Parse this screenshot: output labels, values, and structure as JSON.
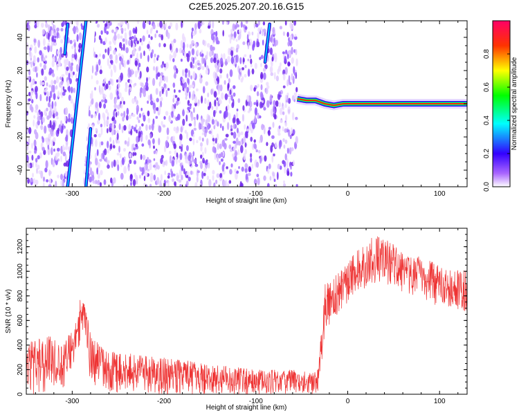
{
  "title": "C2E5.2025.207.20.16.G15",
  "colors": {
    "snr_line": "#ee3333",
    "colorbar_stops": [
      "#ffffff",
      "#9933ff",
      "#3300ff",
      "#00ffff",
      "#00ff00",
      "#ffff00",
      "#ff0000",
      "#ff0066"
    ],
    "axes": "#000000"
  },
  "chart_data": [
    {
      "type": "heatmap",
      "title": "C2E5.2025.207.20.16.G15",
      "xlabel": "Height of straight line (km)",
      "ylabel": "Frequency (Hz)",
      "xlim": [
        -350,
        130
      ],
      "ylim": [
        -50,
        50
      ],
      "x_ticks": [
        -300,
        -200,
        -100,
        0,
        100
      ],
      "y_ticks": [
        -40,
        -20,
        0,
        20,
        40
      ],
      "colorbar": {
        "label": "Normalized spectral amplitude",
        "range": [
          0,
          1
        ],
        "ticks": [
          0.0,
          0.2,
          0.4,
          0.6,
          0.8
        ]
      },
      "features": [
        {
          "name": "noise_floor",
          "x_range": [
            -350,
            -55
          ],
          "y_range": [
            -50,
            50
          ]
        },
        {
          "name": "diagonal_streak_main",
          "from": [
            -305,
            -50
          ],
          "to": [
            -285,
            50
          ]
        },
        {
          "name": "diagonal_streak_lower",
          "from": [
            -285,
            -50
          ],
          "to": [
            -280,
            -15
          ]
        },
        {
          "name": "diagonal_streak_upper_left",
          "from": [
            -308,
            30
          ],
          "to": [
            -305,
            48
          ]
        },
        {
          "name": "diagonal_streak_right",
          "from": [
            -90,
            25
          ],
          "to": [
            -85,
            48
          ]
        },
        {
          "name": "carrier_tone",
          "x": [
            -55,
            -45,
            -35,
            -25,
            -15,
            -5,
            0,
            130
          ],
          "y": [
            3,
            2,
            2,
            0,
            -1,
            0,
            0,
            0
          ]
        }
      ]
    },
    {
      "type": "line",
      "xlabel": "Height of straight line (km)",
      "ylabel": "SNR (10 * v/v)",
      "xlim": [
        -350,
        130
      ],
      "ylim": [
        0,
        1350
      ],
      "x_ticks": [
        -300,
        -200,
        -100,
        0,
        100
      ],
      "y_ticks": [
        0,
        200,
        400,
        600,
        800,
        1000,
        1200
      ],
      "envelope": {
        "x": [
          -350,
          -330,
          -310,
          -300,
          -295,
          -290,
          -285,
          -280,
          -275,
          -270,
          -250,
          -200,
          -150,
          -100,
          -60,
          -40,
          -32,
          -25,
          -15,
          -5,
          5,
          20,
          30,
          40,
          55,
          70,
          85,
          100,
          115,
          130
        ],
        "min": [
          0,
          0,
          50,
          150,
          350,
          420,
          300,
          100,
          50,
          20,
          10,
          0,
          0,
          0,
          0,
          0,
          0,
          500,
          600,
          700,
          800,
          850,
          900,
          900,
          850,
          800,
          750,
          700,
          700,
          650
        ],
        "max": [
          450,
          480,
          450,
          580,
          700,
          800,
          700,
          500,
          440,
          400,
          350,
          300,
          250,
          200,
          200,
          180,
          200,
          900,
          950,
          1050,
          1150,
          1250,
          1300,
          1280,
          1200,
          1150,
          1100,
          1050,
          1000,
          1050
        ]
      }
    }
  ]
}
